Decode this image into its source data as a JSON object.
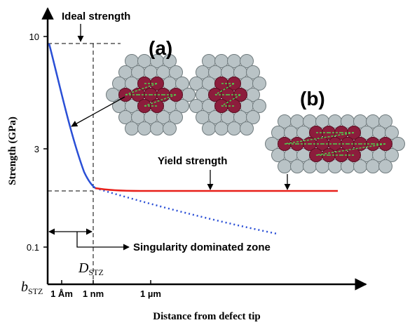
{
  "axes": {
    "y_label": "Strength (GPa)",
    "x_label": "Distance from defect tip",
    "y_ticks": [
      "10",
      "3",
      "0.1"
    ],
    "x_ticks": [
      "1 Åm",
      "1 nm",
      "1 µm"
    ],
    "x_origin": {
      "base": "b",
      "sub": "STZ"
    },
    "d_stz": {
      "base": "D",
      "sub": "STZ"
    }
  },
  "annotations": {
    "ideal_strength": "Ideal strength",
    "panel_a": "(a)",
    "panel_b": "(b)",
    "yield_strength": "Yield strength",
    "singularity": "Singularity dominated zone"
  }
}
